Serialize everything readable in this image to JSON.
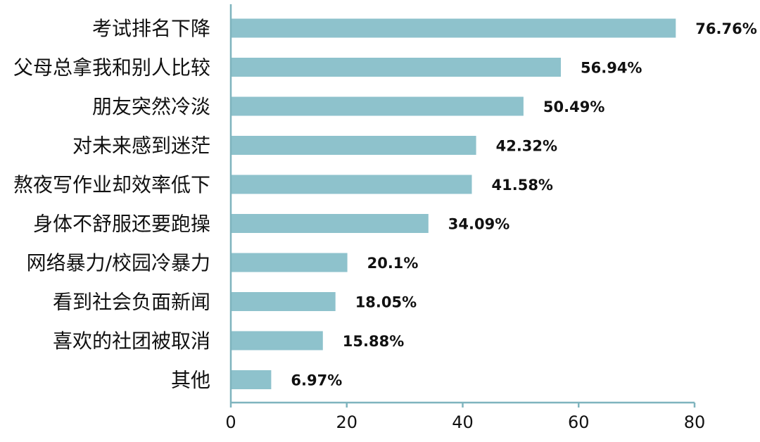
{
  "chart_data": {
    "type": "bar",
    "orientation": "horizontal",
    "categories": [
      "考试排名下降",
      "父母总拿我和别人比较",
      "朋友突然冷淡",
      "对未来感到迷茫",
      "熬夜写作业却效率低下",
      "身体不舒服还要跑操",
      "网络暴力/校园冷暴力",
      "看到社会负面新闻",
      "喜欢的社团被取消",
      "其他"
    ],
    "values": [
      76.76,
      56.94,
      50.49,
      42.32,
      41.58,
      34.09,
      20.1,
      18.05,
      15.88,
      6.97
    ],
    "data_labels": [
      "76.76%",
      "56.94%",
      "50.49%",
      "42.32%",
      "41.58%",
      "34.09%",
      "20.1%",
      "18.05%",
      "15.88%",
      "6.97%"
    ],
    "x_ticks": [
      "0",
      "20",
      "40",
      "60",
      "80"
    ],
    "xlim": [
      0,
      80
    ],
    "title": "",
    "xlabel": "",
    "ylabel": "",
    "grid": false,
    "legend": "none",
    "colors": {
      "bar": "#8EC2CC",
      "axis": "#7FB4BE",
      "text": "#111111"
    }
  }
}
